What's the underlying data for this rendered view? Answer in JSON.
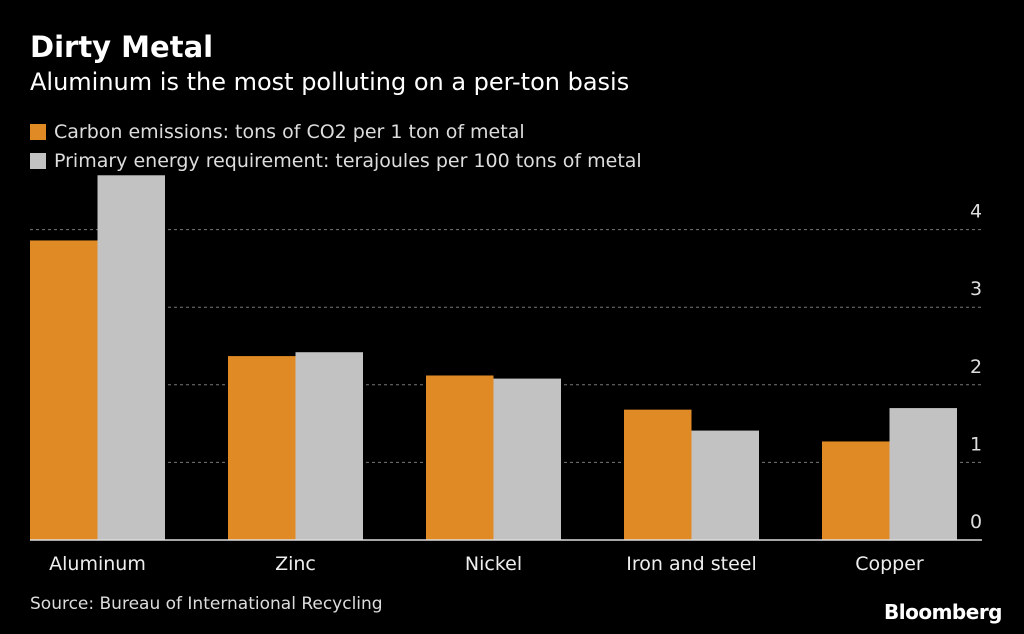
{
  "chart_data": {
    "type": "bar",
    "title": "Dirty Metal",
    "subtitle": "Aluminum is the most polluting on a per-ton basis",
    "categories": [
      "Aluminum",
      "Zinc",
      "Nickel",
      "Iron and steel",
      "Copper"
    ],
    "series": [
      {
        "name": "Carbon emissions: tons of CO2 per 1 ton of metal",
        "color": "#e08a26",
        "values": [
          3.86,
          2.37,
          2.12,
          1.68,
          1.27
        ]
      },
      {
        "name": "Primary energy requirement: terajoules per 100 tons of metal",
        "color": "#c2c2c2",
        "values": [
          4.7,
          2.42,
          2.08,
          1.41,
          1.7
        ]
      }
    ],
    "ylim": [
      0,
      4.7
    ],
    "yticks": [
      "0",
      "1",
      "2",
      "3",
      "4"
    ],
    "xlabel": "",
    "ylabel": "",
    "grid": true,
    "legend_placement": "top-left",
    "source": "Source: Bureau of International Recycling",
    "brand": "Bloomberg"
  }
}
